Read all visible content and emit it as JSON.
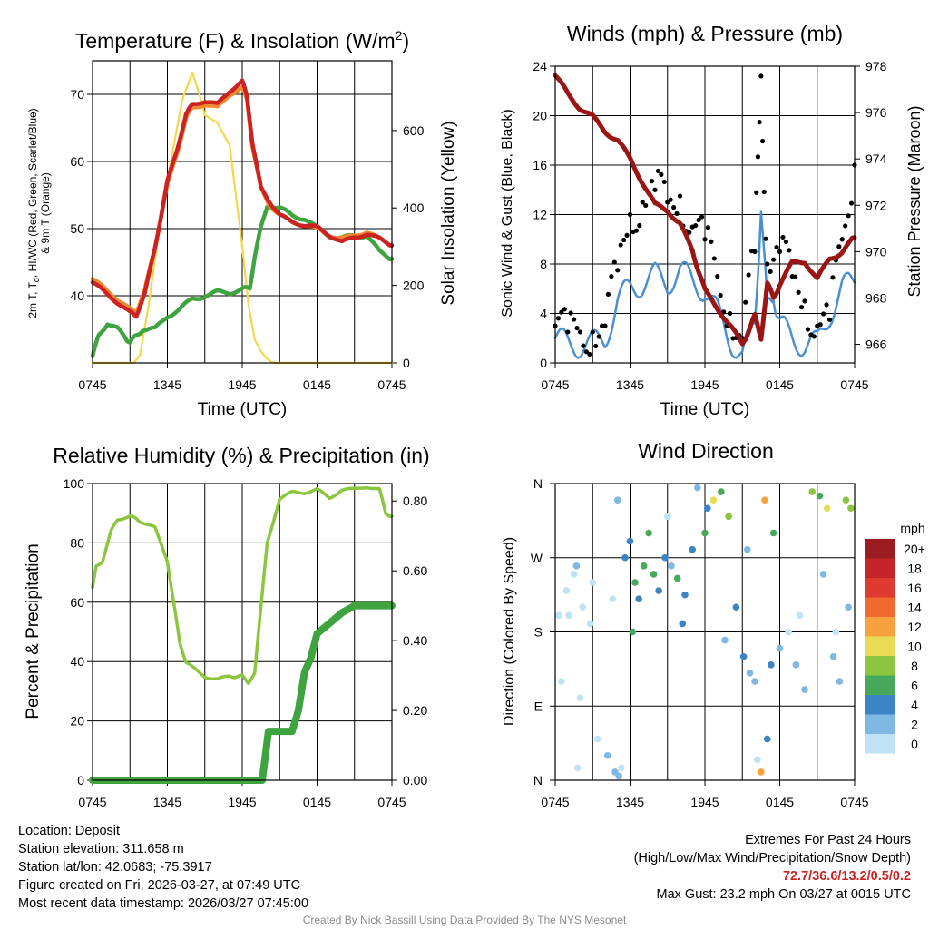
{
  "chart_data": [
    {
      "type": "line",
      "title": "Temperature (F) & Insolation (W/m²)",
      "xlabel": "Time (UTC)",
      "ylabel_left": "2m T, Td, HI/WC (Red, Green, Scarlet/Blue) & 9m T (Orange)",
      "ylabel_right": "Solar Insolation (Yellow)",
      "x_ticks": [
        "0745",
        "1345",
        "1945",
        "0145",
        "0745"
      ],
      "xlim_hours": [
        0,
        24
      ],
      "ylim_left": [
        30,
        75
      ],
      "yticks_left": [
        40,
        50,
        60,
        70
      ],
      "ylim_right": [
        0,
        780
      ],
      "yticks_right": [
        0,
        200,
        400,
        600
      ],
      "series": [
        {
          "name": "2m Temperature",
          "color": "#cc2222",
          "axis": "left",
          "x": [
            0,
            1,
            2,
            3,
            3.5,
            4.2,
            5,
            5.5,
            6,
            6.8,
            7.5,
            8,
            9,
            10,
            11,
            12,
            12.4,
            12.8,
            13.5,
            14.2,
            15,
            16,
            17,
            18,
            19,
            20,
            21,
            22,
            23,
            24
          ],
          "y": [
            42,
            40.5,
            39,
            37.5,
            37,
            40.5,
            47,
            52,
            57,
            62,
            67,
            68.5,
            69,
            68.5,
            70.5,
            72,
            69.5,
            63,
            56,
            54,
            52,
            51,
            50.5,
            50.2,
            49,
            48,
            48.7,
            49.2,
            48.5,
            47.5
          ]
        },
        {
          "name": "9m Temperature",
          "color": "#f08a30",
          "axis": "left",
          "x": [
            0,
            1,
            2,
            3,
            3.5,
            4.2,
            5,
            5.5,
            6,
            6.8,
            7.5,
            8,
            9,
            10,
            11,
            12,
            12.4,
            12.8,
            13.5,
            14.2,
            15,
            16,
            17,
            18,
            19,
            20,
            21,
            22,
            23,
            24
          ],
          "y": [
            42.5,
            41,
            39.5,
            38,
            37.5,
            41,
            47,
            52,
            56.5,
            61.5,
            66.5,
            68,
            68.5,
            68,
            70,
            71,
            69,
            62.5,
            56,
            53.5,
            52,
            51,
            50.5,
            50,
            49,
            48.5,
            49,
            49.5,
            48.5,
            47.5
          ]
        },
        {
          "name": "Dew Point",
          "color": "#3fa33f",
          "axis": "left",
          "x": [
            0,
            0.5,
            1.2,
            2,
            2.6,
            3,
            3.5,
            4,
            5,
            6,
            7,
            8,
            9,
            10,
            11,
            12,
            12.6,
            13,
            13.5,
            14,
            15,
            16,
            17,
            18,
            19,
            20,
            21,
            22,
            23,
            24
          ],
          "y": [
            31,
            34,
            36,
            35,
            34,
            33,
            34,
            35,
            35,
            37,
            38,
            39.5,
            40,
            40.5,
            40.5,
            41,
            41,
            46,
            50,
            53.5,
            53,
            52,
            51.5,
            50,
            49,
            48.5,
            49,
            49,
            46.5,
            45.5
          ]
        },
        {
          "name": "Solar Insolation",
          "color": "#f5d84a",
          "axis": "right",
          "x": [
            0,
            3.3,
            3.8,
            4.5,
            5.5,
            6.5,
            7.2,
            8,
            8.5,
            9,
            10,
            11,
            11.5,
            12,
            12.5,
            13,
            13.5,
            14,
            14.5,
            15,
            24
          ],
          "y": [
            0,
            0,
            20,
            150,
            380,
            560,
            680,
            750,
            700,
            640,
            620,
            560,
            430,
            300,
            150,
            60,
            30,
            10,
            0,
            0,
            0
          ]
        }
      ]
    },
    {
      "type": "line",
      "title": "Winds (mph) & Pressure (mb)",
      "xlabel": "Time (UTC)",
      "ylabel_left": "Sonic Wind & Gust (Blue, Black)",
      "ylabel_right": "Station Pressure (Maroon)",
      "x_ticks": [
        "0745",
        "1345",
        "1945",
        "0145",
        "0745"
      ],
      "xlim_hours": [
        0,
        24
      ],
      "ylim_left": [
        0,
        24
      ],
      "yticks_left": [
        0,
        4,
        8,
        12,
        16,
        20,
        24
      ],
      "ylim_right": [
        965.2,
        978
      ],
      "yticks_right": [
        966,
        968,
        970,
        972,
        974,
        976,
        978
      ],
      "series": [
        {
          "name": "Sonic Wind",
          "color": "#4a90d0",
          "axis": "left",
          "x": [
            0,
            1,
            2,
            3,
            4,
            5,
            6,
            7,
            8,
            9,
            10,
            11,
            12,
            13,
            14,
            15,
            16,
            16.5,
            17,
            17.5,
            18,
            19,
            20,
            21,
            22,
            23,
            24
          ],
          "y": [
            2,
            1.5,
            1.5,
            1.5,
            2,
            5,
            6,
            6.5,
            7,
            6.5,
            7.5,
            6.5,
            6,
            4,
            2,
            0.5,
            3,
            13,
            4,
            6,
            3,
            2,
            1.5,
            1.5,
            4,
            6,
            6.5
          ]
        },
        {
          "name": "Gust",
          "color": "#000000",
          "axis": "left",
          "x": [
            0,
            1,
            2,
            3,
            4,
            5,
            6,
            7,
            8,
            9,
            10,
            11,
            12,
            13,
            14,
            15,
            16,
            16.5,
            17,
            18,
            19,
            20,
            21,
            22,
            23,
            24
          ],
          "y": [
            3,
            2.5,
            2.5,
            2.5,
            3,
            7.5,
            12,
            13,
            14,
            13,
            13.5,
            11,
            10,
            7,
            4,
            2,
            9,
            23.2,
            8,
            9,
            7,
            5,
            3,
            3.5,
            10,
            16
          ]
        },
        {
          "name": "Station Pressure",
          "color": "#9b1515",
          "axis": "right",
          "x": [
            0,
            1,
            2,
            3,
            4,
            5,
            6,
            7,
            8,
            9,
            10,
            11,
            11.5,
            12,
            13,
            14,
            15,
            15.5,
            16,
            16.5,
            17,
            17.5,
            18,
            19,
            20,
            21,
            22,
            23,
            24
          ],
          "y": [
            977.6,
            976.8,
            976.2,
            975.8,
            975.2,
            974.8,
            974.0,
            973.0,
            972.0,
            971.8,
            971.2,
            970.0,
            969.2,
            968.3,
            967.6,
            966.8,
            966.0,
            966.6,
            967.2,
            966.3,
            968.6,
            968.0,
            968.6,
            969.5,
            969.6,
            968.8,
            969.7,
            970.0,
            970.6
          ]
        }
      ]
    },
    {
      "type": "line",
      "title": "Relative Humidity (%) & Precipitation (in)",
      "xlabel": "",
      "ylabel_left": "Percent & Precipitation",
      "x_ticks": [
        "0745",
        "1345",
        "1945",
        "0145",
        "0745"
      ],
      "xlim_hours": [
        0,
        24
      ],
      "ylim_left": [
        0,
        100
      ],
      "yticks_left": [
        0,
        20,
        40,
        60,
        80,
        100
      ],
      "ylim_right": [
        0,
        0.85
      ],
      "yticks_right": [
        "0.00",
        "0.20",
        "0.40",
        "0.60",
        "0.80"
      ],
      "series": [
        {
          "name": "Relative Humidity",
          "color": "#8cc63f",
          "axis": "left",
          "x": [
            0,
            0.3,
            0.8,
            1.5,
            2,
            3,
            3.5,
            4,
            5,
            6,
            6.5,
            7,
            7.5,
            8,
            9,
            10,
            11,
            11.5,
            12,
            12.5,
            13,
            14,
            15,
            16,
            17,
            18,
            19,
            20,
            21,
            22,
            23,
            23.5,
            24
          ],
          "y": [
            65,
            72,
            74,
            84,
            88,
            89,
            88,
            87,
            85,
            74,
            60,
            46,
            40,
            38,
            35,
            34,
            35,
            35,
            35,
            33,
            36,
            80,
            95,
            97,
            97,
            98,
            95,
            98,
            98,
            99,
            98,
            90,
            89
          ]
        },
        {
          "name": "Precipitation",
          "color": "#3fa33f",
          "axis": "right",
          "x": [
            0,
            13.6,
            14.1,
            15.2,
            16,
            16.5,
            17,
            17.5,
            18,
            19,
            20,
            21,
            22,
            23,
            24
          ],
          "y": [
            0,
            0,
            0.14,
            0.14,
            0.14,
            0.2,
            0.31,
            0.35,
            0.42,
            0.45,
            0.48,
            0.5,
            0.5,
            0.5,
            0.5
          ]
        }
      ]
    },
    {
      "type": "scatter",
      "title": "Wind Direction",
      "ylabel_left": "Direction (Colored By Speed)",
      "x_ticks": [
        "0745",
        "1345",
        "1945",
        "0145",
        "0745"
      ],
      "xlim_hours": [
        0,
        24
      ],
      "ylim_deg": [
        0,
        360
      ],
      "yticks": [
        "N",
        "E",
        "S",
        "W",
        "N"
      ],
      "series": [
        {
          "name": "Wind direction (colored by speed)",
          "x": [
            0.3,
            0.9,
            1.5,
            1.7,
            2.2,
            2.8,
            3.4,
            4.2,
            4.8,
            5.3,
            5.6,
            6.0,
            6.4,
            6.7,
            7.1,
            7.5,
            7.9,
            8.3,
            8.8,
            9.3,
            9.8,
            10.4,
            11.0,
            11.4,
            12.0,
            12.7,
            13.3,
            13.9,
            14.5,
            15.1,
            15.6,
            16.0,
            16.5,
            17.0,
            17.5,
            18.0,
            18.7,
            19.3,
            20.0,
            20.6,
            21.2,
            21.8,
            22.3,
            22.8,
            23.3,
            23.7,
            0.5,
            1.1,
            2.0,
            3.0,
            4.6,
            5.1,
            6.2,
            9.0,
            10.2,
            12.2,
            13.6,
            15.4,
            16.2,
            17.3,
            19.6,
            21.5,
            22.5,
            23.5,
            1.8,
            5.0,
            16.8
          ],
          "y": [
            200,
            230,
            250,
            260,
            210,
            190,
            50,
            30,
            10,
            15,
            270,
            290,
            240,
            220,
            260,
            300,
            250,
            230,
            270,
            260,
            245,
            225,
            280,
            355,
            300,
            340,
            350,
            320,
            210,
            150,
            130,
            120,
            10,
            50,
            300,
            160,
            180,
            140,
            110,
            350,
            345,
            330,
            150,
            120,
            340,
            330,
            120,
            200,
            100,
            240,
            220,
            5,
            180,
            320,
            190,
            330,
            170,
            280,
            25,
            140,
            200,
            250,
            180,
            210,
            15,
            340,
            340
          ],
          "speed": [
            1,
            1,
            1,
            2,
            1,
            1,
            1,
            3,
            2,
            1,
            4,
            5,
            6,
            5,
            6,
            7,
            6,
            5,
            4,
            3,
            7,
            5,
            4,
            3,
            7,
            10,
            6,
            8,
            5,
            4,
            3,
            3,
            12,
            4,
            6,
            3,
            1,
            2,
            3,
            8,
            7,
            10,
            3,
            2,
            8,
            9,
            1,
            1,
            1,
            1,
            1,
            3,
            6,
            1,
            4,
            4,
            3,
            2,
            1,
            4,
            1,
            2,
            1,
            2,
            1,
            2,
            12
          ]
        }
      ],
      "legend_title": "mph",
      "legend_labels": [
        "20+",
        "18",
        "16",
        "14",
        "12",
        "10",
        "8",
        "6",
        "4",
        "2",
        "0"
      ],
      "legend_colors": [
        "#9b1c20",
        "#c4242a",
        "#de3a2f",
        "#f06a2f",
        "#f8a23f",
        "#e8dc55",
        "#8cc63f",
        "#45a85a",
        "#3d84c5",
        "#7fb8e3",
        "#bfe2f5"
      ]
    }
  ],
  "titles": {
    "temp": [
      "Temperature (F) & Insolation (W/m",
      "2",
      ")"
    ],
    "winds": "Winds (mph) & Pressure (mb)",
    "rh": "Relative Humidity (%) & Precipitation (in)",
    "dir": "Wind Direction"
  },
  "axis_labels": {
    "time": "Time (UTC)",
    "temp_left_line1": "2m T, T",
    "temp_left_sub": "d",
    "temp_left_line1b": ", HI/WC (Red, Green, Scarlet/Blue)",
    "temp_left_line2": "& 9m T (Orange)",
    "temp_right": "Solar Insolation (Yellow)",
    "winds_left": "Sonic Wind & Gust (Blue, Black)",
    "winds_right": "Station Pressure (Maroon)",
    "rh_left": "Percent & Precipitation",
    "dir_left": "Direction (Colored By Speed)"
  },
  "info": {
    "location": "Location: Deposit",
    "elevation": "Station elevation: 311.658 m",
    "latlon": "Station lat/lon: 42.0683; -75.3917",
    "created": "Figure created on Fri, 2026-03-27, at 07:49 UTC",
    "recent": "Most recent data timestamp: 2026/03/27 07:45:00"
  },
  "extremes": {
    "heading": "Extremes For Past 24 Hours",
    "subheading": "(High/Low/Max Wind/Precipitation/Snow Depth)",
    "values": "72.7/36.6/13.2/0.5/0.2",
    "max_gust": "Max Gust: 23.2 mph On 03/27 at 0015 UTC"
  },
  "credit": "Created By Nick Bassill Using Data Provided By The NYS Mesonet"
}
